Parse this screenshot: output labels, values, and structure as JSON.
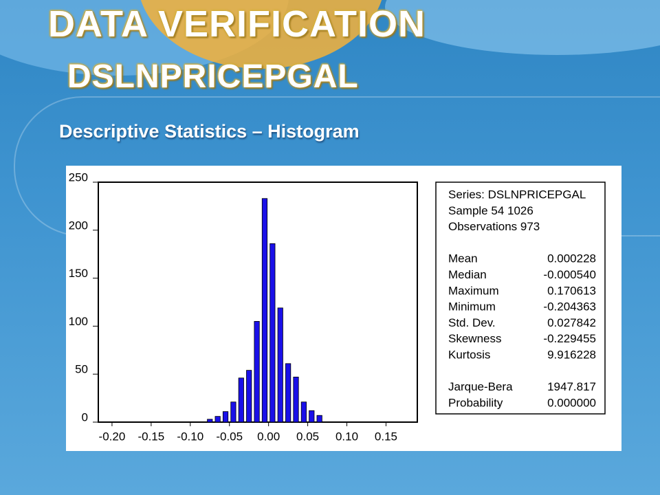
{
  "header": {
    "title": "DATA VERIFICATION",
    "subtitle": "DSLNPRICEPGAL"
  },
  "section": "Descriptive Statistics – Histogram",
  "chart_data": {
    "type": "histogram",
    "bins": [
      -0.08,
      -0.07,
      -0.06,
      -0.05,
      -0.04,
      -0.03,
      -0.02,
      -0.01,
      0.0,
      0.01,
      0.02,
      0.03,
      0.04,
      0.05,
      0.06,
      0.07
    ],
    "values": [
      3,
      6,
      11,
      21,
      46,
      54,
      105,
      233,
      186,
      119,
      61,
      47,
      21,
      12,
      7
    ],
    "color": "#1a10e8",
    "xlim": [
      -0.2175,
      0.19
    ],
    "xticks": [
      {
        "value": -0.2,
        "label": "-0.20"
      },
      {
        "value": -0.15,
        "label": "-0.15"
      },
      {
        "value": -0.1,
        "label": "-0.10"
      },
      {
        "value": -0.05,
        "label": "-0.05"
      },
      {
        "value": 0,
        "label": "0.00"
      },
      {
        "value": 0.05,
        "label": "0.05"
      },
      {
        "value": 0.1,
        "label": "0.10"
      },
      {
        "value": 0.15,
        "label": "0.15"
      }
    ],
    "ylim": [
      0,
      250
    ],
    "yticks": [
      0,
      50,
      100,
      150,
      200,
      250
    ]
  },
  "stats": {
    "summary": [
      "Series: DSLNPRICEPGAL",
      "Sample 54 1026",
      "Observations 973"
    ],
    "moments": [
      [
        "Mean",
        "0.000228"
      ],
      [
        "Median",
        "-0.000540"
      ],
      [
        "Maximum",
        "0.170613"
      ],
      [
        "Minimum",
        "-0.204363"
      ],
      [
        "Std. Dev.",
        "0.027842"
      ],
      [
        "Skewness",
        "-0.229455"
      ],
      [
        "Kurtosis",
        "9.916228"
      ]
    ],
    "tests": [
      [
        "Jarque-Bera",
        "1947.817"
      ],
      [
        "Probability",
        "0.000000"
      ]
    ]
  }
}
